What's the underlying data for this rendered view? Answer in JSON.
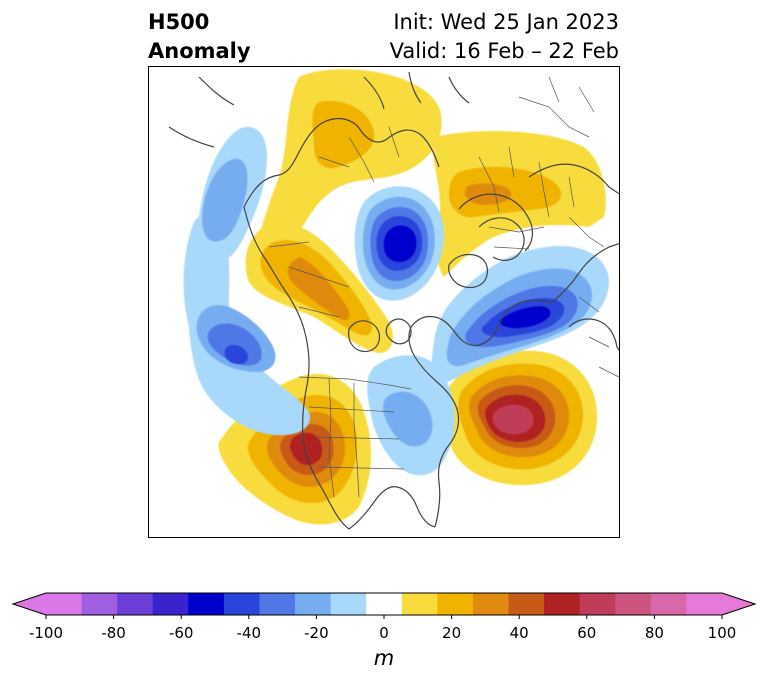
{
  "header": {
    "variable": "H500",
    "field": "Anomaly",
    "init": "Init: Wed 25 Jan 2023",
    "valid": "Valid: 16 Feb – 22 Feb"
  },
  "colorbar": {
    "units": "m",
    "ticks": [
      "-100",
      "-80",
      "-60",
      "-40",
      "-20",
      "0",
      "20",
      "40",
      "60",
      "80",
      "100"
    ],
    "levels": [
      -100,
      -90,
      -80,
      -70,
      -60,
      -50,
      -40,
      -30,
      -20,
      -10,
      10,
      20,
      30,
      40,
      50,
      60,
      70,
      80,
      90,
      100
    ],
    "colors": [
      "#d978e6",
      "#a05ee0",
      "#6c40d8",
      "#3a22cc",
      "#0000cc",
      "#2a44dc",
      "#4f77e6",
      "#76adf0",
      "#a8d8fa",
      "#ffffff",
      "#f8dc3c",
      "#f0b400",
      "#e08a10",
      "#c85a18",
      "#b02222",
      "#c03c58",
      "#cc5580",
      "#d868aa",
      "#e67ad8"
    ],
    "under_color": "#d978e6",
    "over_color": "#e67ad8"
  },
  "map": {
    "projection": "north-polar-stereographic",
    "region": "North America / Northern Hemisphere",
    "anomaly_centers": [
      {
        "region": "Western US / Great Basin",
        "sign": "positive",
        "peak_m": 60
      },
      {
        "region": "Central North Atlantic",
        "sign": "positive",
        "peak_m": 70
      },
      {
        "region": "Northern Europe / Scandinavia",
        "sign": "positive",
        "peak_m": 20
      },
      {
        "region": "Eastern Siberia / Arctic",
        "sign": "positive",
        "peak_m": 20
      },
      {
        "region": "Western Canada / Alaska interior",
        "sign": "positive",
        "peak_m": 40
      },
      {
        "region": "Kara Sea / Arctic Ocean",
        "sign": "negative",
        "peak_m": -60
      },
      {
        "region": "Greenland / Northeast Atlantic",
        "sign": "negative",
        "peak_m": -60
      },
      {
        "region": "Central North Pacific",
        "sign": "negative",
        "peak_m": -40
      },
      {
        "region": "Bering Sea / Northwest Pacific",
        "sign": "negative",
        "peak_m": -30
      },
      {
        "region": "Eastern US / Great Lakes",
        "sign": "negative",
        "peak_m": -20
      }
    ]
  }
}
